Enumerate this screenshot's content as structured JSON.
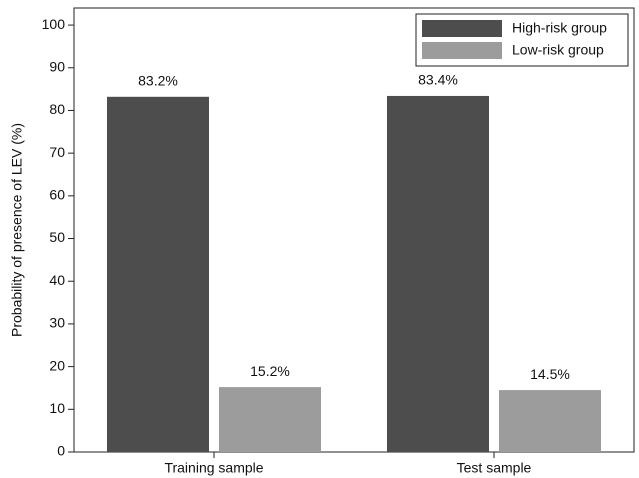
{
  "chart_data": {
    "type": "bar",
    "y_axis_label": "Probability of presence of LEV (%)",
    "categories": [
      "Training sample",
      "Test sample"
    ],
    "series": [
      {
        "name": "High-risk group",
        "color": "#4d4d4d",
        "values": [
          83.2,
          83.4
        ],
        "value_labels": [
          "83.2%",
          "83.4%"
        ]
      },
      {
        "name": "Low-risk group",
        "color": "#9c9c9c",
        "values": [
          15.2,
          14.5
        ],
        "value_labels": [
          "15.2%",
          "14.5%"
        ]
      }
    ],
    "ylim": [
      0,
      104
    ],
    "yticks": [
      0,
      10,
      20,
      30,
      40,
      50,
      60,
      70,
      80,
      90,
      100
    ],
    "legend": "top-right"
  }
}
